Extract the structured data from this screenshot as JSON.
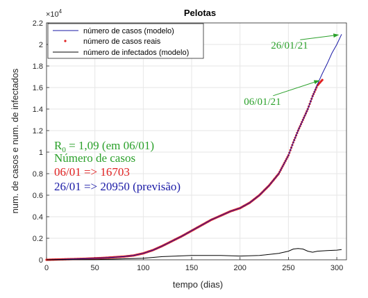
{
  "chart_data": {
    "type": "line",
    "title": "Pelotas",
    "xlabel": "tempo (dias)",
    "ylabel": "num. de casos e num. de infectados",
    "y_exponent_label": "×10",
    "y_exponent_power": "4",
    "xlim": [
      0,
      310
    ],
    "ylim": [
      0,
      22000
    ],
    "x_ticks": [
      0,
      50,
      100,
      150,
      200,
      250,
      300
    ],
    "x_tick_labels": [
      "0",
      "50",
      "100",
      "150",
      "200",
      "250",
      "300"
    ],
    "y_ticks": [
      0,
      2000,
      4000,
      6000,
      8000,
      10000,
      12000,
      14000,
      16000,
      18000,
      20000,
      22000
    ],
    "y_tick_labels": [
      "0",
      "0.2",
      "0.4",
      "0.6",
      "0.8",
      "1",
      "1.2",
      "1.4",
      "1.6",
      "1.8",
      "2",
      "2.2"
    ],
    "grid": true,
    "legend_position": "top-left",
    "series": [
      {
        "name": "número de casos (modelo)",
        "style": "line",
        "color": "#1a1aa6",
        "x": [
          0,
          20,
          40,
          60,
          80,
          90,
          100,
          110,
          120,
          130,
          140,
          150,
          160,
          170,
          180,
          190,
          200,
          210,
          220,
          230,
          240,
          250,
          255,
          260,
          265,
          270,
          275,
          280,
          285,
          290,
          295,
          300,
          305
        ],
        "y": [
          0,
          50,
          100,
          180,
          300,
          400,
          600,
          900,
          1300,
          1750,
          2200,
          2700,
          3200,
          3700,
          4100,
          4500,
          4800,
          5300,
          6000,
          6900,
          8000,
          9700,
          10900,
          12000,
          13000,
          14000,
          15200,
          16300,
          17300,
          18200,
          19200,
          20000,
          20950
        ]
      },
      {
        "name": "número de casos reais",
        "style": "markers",
        "color": "#e02020",
        "x": [
          0,
          20,
          40,
          60,
          80,
          90,
          100,
          110,
          120,
          130,
          140,
          150,
          160,
          170,
          180,
          190,
          200,
          210,
          220,
          230,
          240,
          250,
          255,
          260,
          265,
          270,
          275,
          280,
          285
        ],
        "y": [
          0,
          50,
          100,
          180,
          300,
          400,
          600,
          900,
          1300,
          1750,
          2200,
          2700,
          3200,
          3700,
          4100,
          4500,
          4800,
          5300,
          6000,
          6900,
          8000,
          9700,
          10900,
          12000,
          13000,
          14000,
          15200,
          16200,
          16703
        ]
      },
      {
        "name": "número de infectados (modelo)",
        "style": "line",
        "color": "#000000",
        "x": [
          0,
          50,
          100,
          120,
          150,
          180,
          200,
          220,
          240,
          250,
          255,
          260,
          265,
          270,
          275,
          280,
          290,
          300,
          305
        ],
        "y": [
          0,
          20,
          150,
          300,
          400,
          400,
          350,
          400,
          600,
          800,
          1000,
          1050,
          1000,
          800,
          700,
          800,
          850,
          900,
          950
        ]
      }
    ],
    "annotations": [
      {
        "text": "26/01/21",
        "color": "#2aa02a",
        "x": 232,
        "y": 19600,
        "arrow_to": [
          303,
          20950
        ]
      },
      {
        "text": "06/01/21",
        "color": "#2aa02a",
        "x": 204,
        "y": 14400,
        "arrow_to": [
          283,
          16703
        ]
      }
    ],
    "text_box": {
      "r0_letter": "R",
      "r0_subscript": "0",
      "r0_rest": " = 1,09 (em 06/01)",
      "r0_color": "#2aa02a",
      "heading": "Número de casos",
      "heading_color": "#2aa02a",
      "line1": "06/01 => 16703",
      "line1_color": "#e02020",
      "line2": "26/01 => 20950 (previsão)",
      "line2_color": "#1a1aa6"
    }
  }
}
